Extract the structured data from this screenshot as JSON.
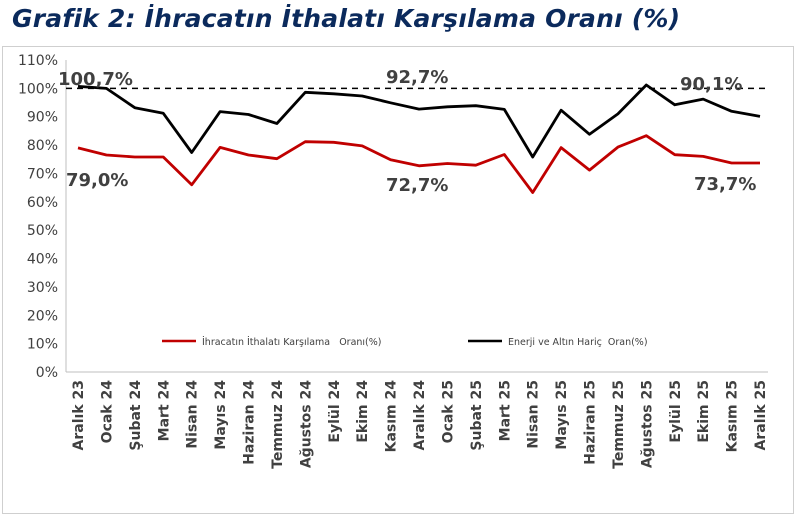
{
  "title": "Grafik 2: İhracatın İthalatı Karşılama Oranı (%)",
  "colors": {
    "title": "#0b2a5c",
    "series_red": "#c00000",
    "series_black": "#000000",
    "reference": "#000000",
    "axis": "#bfbfbf"
  },
  "chart_data": {
    "type": "line",
    "title": "Grafik 2: İhracatın İthalatı Karşılama Oranı (%)",
    "categories": [
      "Aralık 23",
      "Ocak 24",
      "Şubat 24",
      "Mart 24",
      "Nisan 24",
      "Mayıs 24",
      "Haziran 24",
      "Temmuz 24",
      "Ağustos 24",
      "Eylül 24",
      "Ekim 24",
      "Kasım 24",
      "Aralık 24",
      "Ocak 25",
      "Şubat 25",
      "Mart 25",
      "Nisan 25",
      "Mayıs 25",
      "Haziran 25",
      "Temmuz 25",
      "Ağustos 25",
      "Eylül 25",
      "Ekim 25",
      "Kasım 25",
      "Aralık 25"
    ],
    "y_ticks": [
      "0%",
      "10%",
      "20%",
      "30%",
      "40%",
      "50%",
      "60%",
      "70%",
      "80%",
      "90%",
      "100%",
      "110%"
    ],
    "ylim": [
      0,
      110
    ],
    "grid": false,
    "legend_position": "bottom-center, inside plot",
    "reference_line": {
      "value": 100,
      "style": "dashed"
    },
    "series": [
      {
        "name": "İhracatın İthalatı Karşılama   Oranı(%)",
        "color": "#c00000",
        "values": [
          79.0,
          76.5,
          75.8,
          75.8,
          66.0,
          79.2,
          76.5,
          75.2,
          81.2,
          81.0,
          79.7,
          74.8,
          72.7,
          73.5,
          72.9,
          76.7,
          63.3,
          79.1,
          71.2,
          79.3,
          83.3,
          76.6,
          76.0,
          73.7,
          73.7
        ]
      },
      {
        "name": "Enerji ve Altın Hariç  Oran(%)",
        "color": "#000000",
        "values": [
          100.7,
          100.0,
          93.2,
          91.2,
          77.4,
          91.8,
          90.8,
          87.6,
          98.6,
          98.1,
          97.3,
          94.9,
          92.7,
          93.5,
          93.9,
          92.6,
          75.8,
          92.3,
          83.8,
          91.0,
          101.2,
          94.2,
          96.2,
          91.9,
          90.1
        ]
      }
    ],
    "annotations": [
      "100,7%",
      "79,0%",
      "92,7%",
      "72,7%",
      "90,1%",
      "73,7%"
    ]
  }
}
